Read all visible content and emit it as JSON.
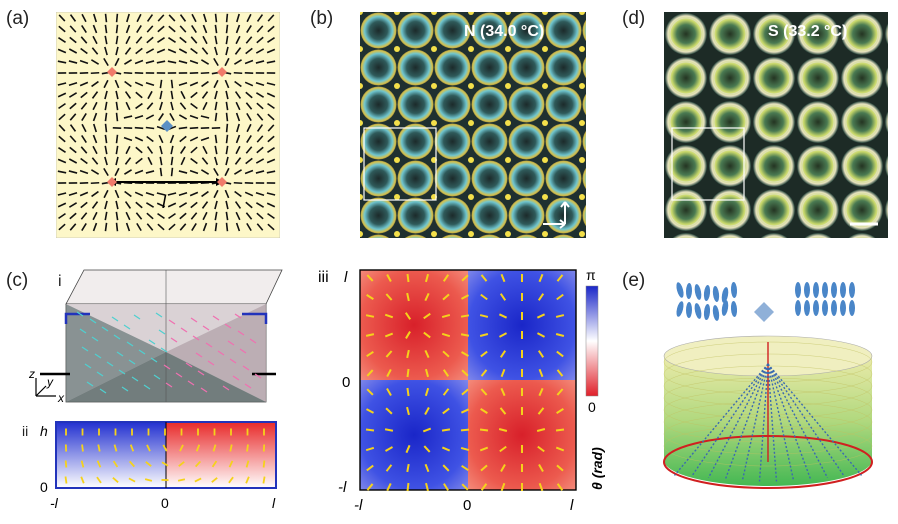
{
  "panels": {
    "a": {
      "label": "(a)",
      "length_label": "l"
    },
    "b": {
      "label": "(b)",
      "caption": "N  (34.0 °C)"
    },
    "c": {
      "label": "(c)",
      "sub_i": "i",
      "sub_ii": "ii",
      "axis_z": "z",
      "axis_y": "y",
      "axis_x": "x",
      "ii_h": "h",
      "ii_zero_y": "0",
      "ii_x_left": "-l",
      "ii_x_mid": "0",
      "ii_x_right": "l"
    },
    "d": {
      "label": "(d)",
      "caption": "S  (33.2 °C)"
    },
    "iii": {
      "label": "iii",
      "y_top": "l",
      "y_mid": "0",
      "y_bot": "-l",
      "x_left": "-l",
      "x_mid": "0",
      "x_right": "l",
      "cb_top": "π",
      "cb_bot": "0",
      "cb_title": "θ (rad)"
    },
    "e": {
      "label": "(e)"
    }
  },
  "colors": {
    "paper": "#fdf7c8",
    "defect_plus": "#f07a6a",
    "defect_minus": "#5b8fc4",
    "red": "#e8302a",
    "blue": "#2e3fd6",
    "rod": "#f5d21b"
  }
}
